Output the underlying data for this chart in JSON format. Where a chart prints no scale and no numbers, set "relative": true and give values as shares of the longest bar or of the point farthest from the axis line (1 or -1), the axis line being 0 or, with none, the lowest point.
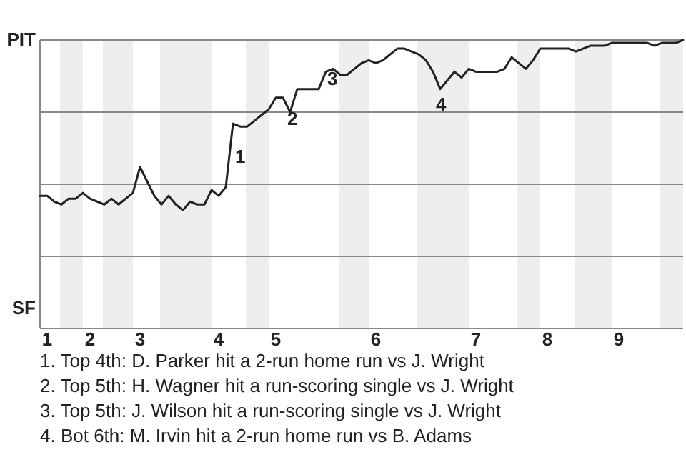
{
  "chart_data": {
    "type": "line",
    "relative": true,
    "categories": [
      null,
      "1",
      null,
      null,
      null,
      null,
      null,
      "2",
      null,
      null,
      null,
      null,
      null,
      null,
      "3",
      null,
      null,
      null,
      null,
      null,
      null,
      null,
      null,
      null,
      null,
      "4",
      null,
      null,
      null,
      null,
      null,
      null,
      null,
      "5",
      null,
      null,
      null,
      null,
      null,
      null,
      null,
      null,
      null,
      null,
      null,
      null,
      null,
      "6",
      null,
      null,
      null,
      null,
      null,
      null,
      null,
      null,
      null,
      null,
      null,
      null,
      null,
      "7",
      null,
      null,
      null,
      null,
      null,
      null,
      null,
      null,
      null,
      "8",
      null,
      null,
      null,
      null,
      null,
      null,
      null,
      null,
      null,
      "9",
      null,
      null,
      null,
      null,
      null,
      null,
      null,
      null,
      null
    ],
    "series": [
      {
        "color": "#222222",
        "values": [
          0.46,
          0.46,
          0.44,
          0.43,
          0.45,
          0.45,
          0.47,
          0.45,
          0.44,
          0.43,
          0.45,
          0.43,
          0.45,
          0.47,
          0.56,
          0.51,
          0.46,
          0.43,
          0.46,
          0.43,
          0.41,
          0.44,
          0.43,
          0.43,
          0.48,
          0.46,
          0.49,
          0.71,
          0.7,
          0.7,
          0.72,
          0.74,
          0.76,
          0.8,
          0.8,
          0.75,
          0.83,
          0.83,
          0.83,
          0.83,
          0.89,
          0.9,
          0.88,
          0.88,
          0.9,
          0.92,
          0.93,
          0.92,
          0.93,
          0.95,
          0.97,
          0.97,
          0.96,
          0.95,
          0.93,
          0.89,
          0.83,
          0.86,
          0.89,
          0.87,
          0.9,
          0.89,
          0.89,
          0.89,
          0.89,
          0.9,
          0.94,
          0.92,
          0.9,
          0.93,
          0.97,
          0.97,
          0.97,
          0.97,
          0.97,
          0.96,
          0.97,
          0.98,
          0.98,
          0.98,
          0.99,
          0.99,
          0.99,
          0.99,
          0.99,
          0.99,
          0.98,
          0.99,
          0.99,
          0.99,
          1
        ]
      }
    ],
    "marker": "none",
    "line_style": "solid",
    "ref_lines": [
      {
        "axis": "y",
        "value": 0.25,
        "color": "#888888"
      },
      {
        "axis": "y",
        "value": 0.5,
        "color": "#888888"
      },
      {
        "axis": "y",
        "value": 0.75,
        "color": "#888888"
      },
      {
        "axis": "y",
        "value": 1,
        "color": "#888888"
      }
    ],
    "annotations": [
      "PIT",
      "SF",
      "1",
      "2",
      "3",
      "4",
      "1. Top 4th: D. Parker hit a 2-run home run vs J. Wright",
      "2. Top 5th: H. Wagner hit a run-scoring single vs J. Wright",
      "3. Top 5th: J. Wilson hit a run-scoring single vs J. Wright",
      "4. Bot 6th: M. Irvin hit a 2-run home run vs B. Adams"
    ]
  }
}
